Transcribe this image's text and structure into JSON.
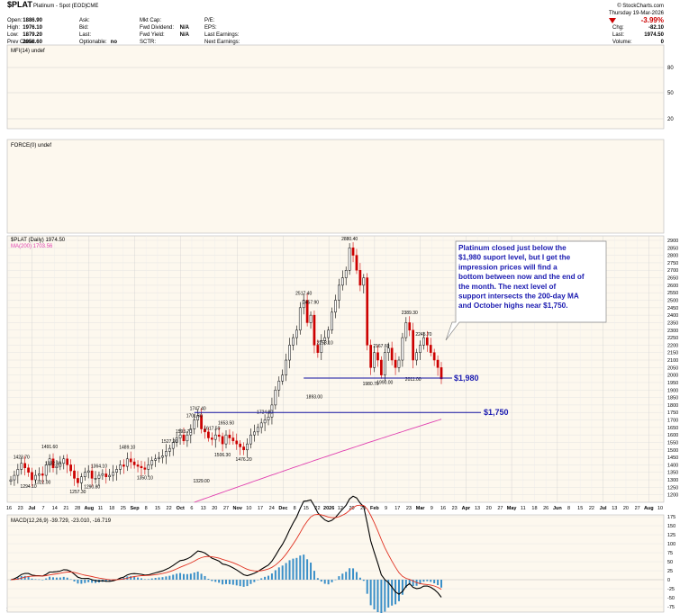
{
  "header": {
    "symbol": "$PLAT",
    "name": "Platinum - Spot (EOD)",
    "exchange": "CME",
    "site": "© StockCharts.com",
    "date": "Thursday 19-Mar-2026",
    "change_pct": "-3.99%",
    "fields": [
      {
        "label": "Open:",
        "value": "1886.90"
      },
      {
        "label": "High:",
        "value": "1976.10"
      },
      {
        "label": "Low:",
        "value": "1879.20"
      },
      {
        "label": "Prev Close:",
        "value": "2056.60"
      },
      {
        "label": "Ask:",
        "value": ""
      },
      {
        "label": "Bid:",
        "value": ""
      },
      {
        "label": "Last:",
        "value": ""
      },
      {
        "label": "Optionable:",
        "value": "no"
      },
      {
        "label": "Mkt Cap:",
        "value": ""
      },
      {
        "label": "Fwd Dividend:",
        "value": "N/A"
      },
      {
        "label": "Fwd Yield:",
        "value": "N/A"
      },
      {
        "label": "SCTR:",
        "value": ""
      },
      {
        "label": "P/E:",
        "value": ""
      },
      {
        "label": "EPS:",
        "value": ""
      },
      {
        "label": "Last Earnings:",
        "value": ""
      },
      {
        "label": "Next Earnings:",
        "value": ""
      },
      {
        "label": "Chg:",
        "value": "-82.10"
      },
      {
        "label": "Last:",
        "value": "1974.50"
      },
      {
        "label": "Volume:",
        "value": "0"
      }
    ]
  },
  "colors": {
    "up": "#000000",
    "down": "#cc0000",
    "ma": "#e040b0",
    "annotation_line": "#1010a0",
    "annotation_text": "#1a1ab0",
    "histogram": "#3a8fc8",
    "signal": "#e03020",
    "grid": "#d8d8d8",
    "panel_bg": "#fdf8ee"
  },
  "chart_data": [
    {
      "type": "line",
      "panel": "MFI",
      "label": "MFI(14) undef",
      "ylim": [
        0,
        100
      ],
      "y_ticks": [
        "80",
        "50",
        "20"
      ]
    },
    {
      "type": "line",
      "panel": "FORCE",
      "label": "FORCE(0) undef"
    },
    {
      "type": "candlestick",
      "panel": "price",
      "label": "$PLAT (Daily) 1974.50",
      "ma_label": "MA(200) 1703.56",
      "ylim": [
        1150,
        2930
      ],
      "y_ticks": [
        "2900",
        "2850",
        "2800",
        "2750",
        "2700",
        "2650",
        "2600",
        "2550",
        "2500",
        "2450",
        "2400",
        "2350",
        "2300",
        "2250",
        "2200",
        "2150",
        "2100",
        "2050",
        "2000",
        "1950",
        "1900",
        "1850",
        "1800",
        "1750",
        "1700",
        "1650",
        "1600",
        "1550",
        "1500",
        "1450",
        "1400",
        "1350",
        "1300",
        "1250",
        "1200"
      ],
      "x_labels": [
        "16",
        "23",
        "Jul",
        "7",
        "14",
        "21",
        "28",
        "Aug",
        "11",
        "18",
        "25",
        "Sep",
        "8",
        "15",
        "22",
        "Oct",
        "6",
        "13",
        "20",
        "27",
        "Nov",
        "10",
        "17",
        "24",
        "Dec",
        "8",
        "15",
        "22",
        "2026",
        "12",
        "20",
        "26",
        "Feb",
        "9",
        "17",
        "23",
        "Mar",
        "9",
        "16",
        "23",
        "Apr",
        "13",
        "20",
        "27",
        "May",
        "11",
        "18",
        "26",
        "Jun",
        "8",
        "15",
        "22",
        "Jul",
        "13",
        "20",
        "27",
        "Aug",
        "10"
      ],
      "data_labels": [
        {
          "text": "1423.70",
          "i": 3,
          "v": 1423.7,
          "pos": "above"
        },
        {
          "text": "1491.60",
          "i": 11,
          "v": 1491.6,
          "pos": "above"
        },
        {
          "text": "1294.10",
          "i": 5,
          "v": 1294.1,
          "pos": "below"
        },
        {
          "text": "1382.60",
          "i": 12,
          "v": 1382.6,
          "pos": "above"
        },
        {
          "text": "1322.00",
          "i": 9,
          "v": 1322.0,
          "pos": "below"
        },
        {
          "text": "1257.30",
          "i": 19,
          "v": 1257.3,
          "pos": "below"
        },
        {
          "text": "1364.10",
          "i": 25,
          "v": 1364.1,
          "pos": "above"
        },
        {
          "text": "1290.80",
          "i": 23,
          "v": 1290.8,
          "pos": "below"
        },
        {
          "text": "1489.10",
          "i": 33,
          "v": 1489.1,
          "pos": "above"
        },
        {
          "text": "1350.10",
          "i": 38,
          "v": 1350.1,
          "pos": "below"
        },
        {
          "text": "1527.90",
          "i": 45,
          "v": 1527.9,
          "pos": "above"
        },
        {
          "text": "1593.70",
          "i": 49,
          "v": 1593.7,
          "pos": "above"
        },
        {
          "text": "1701.60",
          "i": 52,
          "v": 1701.6,
          "pos": "above"
        },
        {
          "text": "1747.40",
          "i": 53,
          "v": 1747.4,
          "pos": "above"
        },
        {
          "text": "1617.50",
          "i": 57,
          "v": 1617.5,
          "pos": "above"
        },
        {
          "text": "1329.00",
          "i": 54,
          "v": 1329.0,
          "pos": "below"
        },
        {
          "text": "1653.50",
          "i": 61,
          "v": 1653.5,
          "pos": "above"
        },
        {
          "text": "1506.30",
          "i": 60,
          "v": 1506.3,
          "pos": "below"
        },
        {
          "text": "1476.20",
          "i": 66,
          "v": 1476.2,
          "pos": "below"
        },
        {
          "text": "1724.30",
          "i": 72,
          "v": 1724.3,
          "pos": "above"
        },
        {
          "text": "2517.40",
          "i": 83,
          "v": 2517.4,
          "pos": "above"
        },
        {
          "text": "2457.90",
          "i": 85,
          "v": 2457.9,
          "pos": "above"
        },
        {
          "text": "1893.00",
          "i": 86,
          "v": 1893.0,
          "pos": "below"
        },
        {
          "text": "2253.10",
          "i": 89,
          "v": 2253.1,
          "pos": "below"
        },
        {
          "text": "2880.40",
          "i": 96,
          "v": 2880.4,
          "pos": "above"
        },
        {
          "text": "1980.70",
          "i": 102,
          "v": 1980.7,
          "pos": "below"
        },
        {
          "text": "2167.60",
          "i": 105,
          "v": 2167.6,
          "pos": "above"
        },
        {
          "text": "1990.00",
          "i": 106,
          "v": 1990.0,
          "pos": "below"
        },
        {
          "text": "2389.30",
          "i": 113,
          "v": 2389.3,
          "pos": "above"
        },
        {
          "text": "2011.00",
          "i": 114,
          "v": 2011.0,
          "pos": "below"
        },
        {
          "text": "2245.70",
          "i": 117,
          "v": 2245.7,
          "pos": "above"
        }
      ],
      "annotations": [
        {
          "text": "$1,980",
          "level": 1980
        },
        {
          "text": "$1,750",
          "level": 1750
        }
      ],
      "note": "Platinum closed just below the $1,980 suport level, but I get the impression prices will find a bottom between now and the end of the month. The next level of support intersects the 200-day MA and October highs near $1,750.",
      "series_close": [
        1300,
        1330,
        1370,
        1410,
        1380,
        1350,
        1300,
        1330,
        1340,
        1330,
        1400,
        1440,
        1380,
        1390,
        1410,
        1440,
        1400,
        1360,
        1310,
        1280,
        1320,
        1350,
        1360,
        1310,
        1310,
        1330,
        1340,
        1320,
        1330,
        1350,
        1370,
        1400,
        1390,
        1440,
        1420,
        1400,
        1390,
        1380,
        1370,
        1400,
        1430,
        1440,
        1450,
        1460,
        1490,
        1510,
        1550,
        1580,
        1600,
        1560,
        1600,
        1640,
        1700,
        1730,
        1640,
        1620,
        1580,
        1570,
        1600,
        1590,
        1540,
        1600,
        1580,
        1560,
        1540,
        1520,
        1500,
        1540,
        1600,
        1620,
        1650,
        1680,
        1700,
        1720,
        1800,
        1900,
        1960,
        2000,
        2100,
        2200,
        2250,
        2300,
        2450,
        2500,
        2350,
        2400,
        2200,
        2150,
        2230,
        2250,
        2300,
        2420,
        2500,
        2600,
        2650,
        2700,
        2850,
        2800,
        2700,
        2600,
        2650,
        2200,
        2050,
        2150,
        2100,
        2000,
        2150,
        2180,
        2100,
        2050,
        2100,
        2250,
        2350,
        2300,
        2100,
        2150,
        2200,
        2250,
        2200,
        2150,
        2100,
        2050,
        1974.5
      ]
    },
    {
      "type": "line",
      "panel": "MACD",
      "label": "MACD(12,26,9) -39.729, -23.010, -16.719",
      "ylim": [
        -90,
        180
      ],
      "y_ticks": [
        "175",
        "150",
        "125",
        "100",
        "75",
        "50",
        "25",
        "0",
        "-25",
        "-50",
        "-75"
      ]
    }
  ]
}
